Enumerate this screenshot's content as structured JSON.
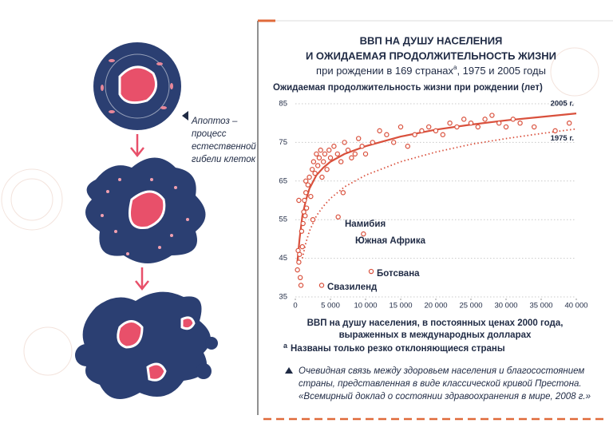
{
  "chart_data": {
    "type": "scatter",
    "title": [
      "ВВП НА ДУШУ НАСЕЛЕНИЯ",
      "И ОЖИДАЕМАЯ ПРОДОЛЖИТЕЛЬНОСТЬ ЖИЗНИ"
    ],
    "subtitle": [
      "при рождении в 169 странах",
      "a",
      ", 1975 и 2005 годы"
    ],
    "y_label": "Ожидаемая продолжительность жизни при рождении (лет)",
    "x_label": [
      "ВВП на душу населения, в постоянных ценах 2000 года,",
      "выраженных в международных долларах"
    ],
    "footnote": [
      "a",
      "Названы только резко отклоняющиеся страны"
    ],
    "annotations": [
      "Намибия",
      "Южная Африка",
      "Ботсвана",
      "Свазиленд"
    ],
    "color": "#d9503c",
    "xlim": [
      0,
      40000
    ],
    "ylim": [
      35,
      85
    ],
    "xticks": [
      0,
      {
        "value": 5000,
        "label": "5 000"
      },
      {
        "value": 10000,
        "label": "10 000"
      },
      {
        "value": 15000,
        "label": "15 000"
      },
      {
        "value": 20000,
        "label": "20 000"
      },
      {
        "value": 25000,
        "label": "25 000"
      },
      {
        "value": 30000,
        "label": "30 000"
      },
      {
        "value": 35000,
        "label": "35 000"
      },
      {
        "value": 40000,
        "label": "40 000"
      }
    ],
    "yticks": [
      35,
      45,
      55,
      65,
      75,
      85
    ],
    "grid": true,
    "x": [
      300,
      400,
      500,
      600,
      700,
      800,
      900,
      1000,
      1100,
      1200,
      1300,
      1400,
      1500,
      1600,
      1800,
      2000,
      2200,
      2400,
      2600,
      2800,
      3000,
      3200,
      3400,
      3600,
      3800,
      4000,
      4200,
      4500,
      4800,
      5000,
      5500,
      6000,
      6500,
      7000,
      7500,
      8000,
      8500,
      9000,
      9500,
      10000,
      11000,
      12000,
      13000,
      14000,
      15000,
      16000,
      17000,
      18000,
      19000,
      20000,
      21000,
      22000,
      23000,
      24000,
      25000,
      26000,
      27000,
      28000,
      29000,
      30000,
      31000,
      32000,
      34000,
      37000,
      39000,
      1500,
      500,
      2500,
      6800,
      6100,
      9700,
      10800,
      3750
    ],
    "values": [
      42,
      47,
      44,
      46,
      40,
      38,
      52,
      48,
      54,
      57,
      60,
      56,
      62,
      58,
      64,
      66,
      61,
      68,
      70,
      67,
      72,
      69,
      71,
      73,
      66,
      70,
      72,
      68,
      73,
      71,
      74,
      72,
      70,
      75,
      73,
      71,
      72,
      76,
      74,
      72,
      75,
      78,
      77,
      75,
      79,
      74,
      77,
      78,
      79,
      78,
      77,
      80,
      79,
      81,
      80,
      79,
      81,
      82,
      80,
      79,
      81,
      80,
      79,
      78,
      80,
      65,
      60,
      55,
      62,
      55.7,
      51.3,
      41.6,
      38
    ],
    "curves": [
      {
        "label": "2005 г.",
        "style": "solid",
        "x": [
          300,
          600,
          1000,
          1500,
          2000,
          3000,
          4000,
          5000,
          7000,
          10000,
          15000,
          20000,
          25000,
          30000,
          35000,
          40000
        ],
        "values": [
          44,
          50,
          56,
          60,
          63,
          66.5,
          68.5,
          70,
          72,
          74,
          76.5,
          78.3,
          79.6,
          80.7,
          81.6,
          82.5
        ]
      },
      {
        "label": "1975 г.",
        "style": "dotted",
        "x": [
          1000,
          1500,
          2000,
          3000,
          4000,
          5000,
          7000,
          10000,
          15000,
          20000,
          25000,
          30000,
          35000,
          40000
        ],
        "values": [
          45,
          49,
          52,
          56,
          58.5,
          60.5,
          63.5,
          66.5,
          70,
          72.5,
          74.5,
          76,
          77.3,
          78.5
        ]
      }
    ],
    "side_text": [
      "Апоптоз –",
      "процесс",
      "естественной",
      "гибели клеток"
    ],
    "note": [
      "Очевидная связь между здоровьем населения и благосостоянием",
      "страны, представленная в виде классической кривой Престона.",
      "«Всемирный доклад о состоянии здравоохранения в мире, 2008 г.»"
    ]
  }
}
